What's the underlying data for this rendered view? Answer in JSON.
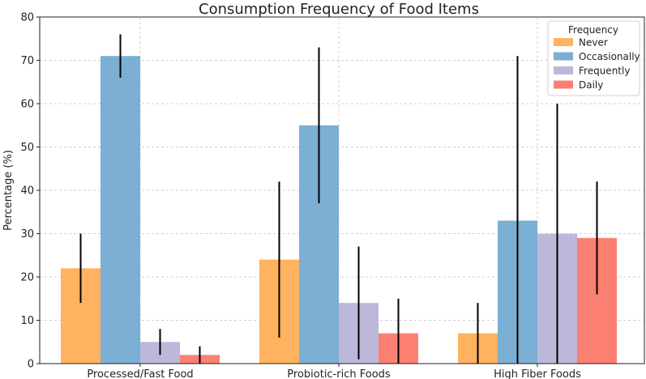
{
  "chart_data": {
    "type": "bar",
    "title": "Consumption Frequency of Food Items",
    "xlabel": "",
    "ylabel": "Percentage (%)",
    "ylim": [
      0,
      80
    ],
    "yticks": [
      0,
      10,
      20,
      30,
      40,
      50,
      60,
      70,
      80
    ],
    "grid": true,
    "categories": [
      "Processed/Fast Food",
      "Probiotic-rich Foods",
      "High Fiber Foods"
    ],
    "legend": {
      "title": "Frequency",
      "placement": "top-right"
    },
    "series": [
      {
        "name": "Never",
        "color": "#ffb25f",
        "values": [
          22,
          24,
          7
        ],
        "errors": [
          8,
          18,
          7
        ]
      },
      {
        "name": "Occasionally",
        "color": "#7bafd4",
        "values": [
          71,
          55,
          33
        ],
        "errors": [
          5,
          18,
          38
        ]
      },
      {
        "name": "Frequently",
        "color": "#bcb8da",
        "values": [
          5,
          14,
          30
        ],
        "errors": [
          3,
          13,
          30
        ]
      },
      {
        "name": "Daily",
        "color": "#fb8072",
        "values": [
          2,
          7,
          29
        ],
        "errors": [
          2,
          8,
          13
        ]
      }
    ]
  }
}
